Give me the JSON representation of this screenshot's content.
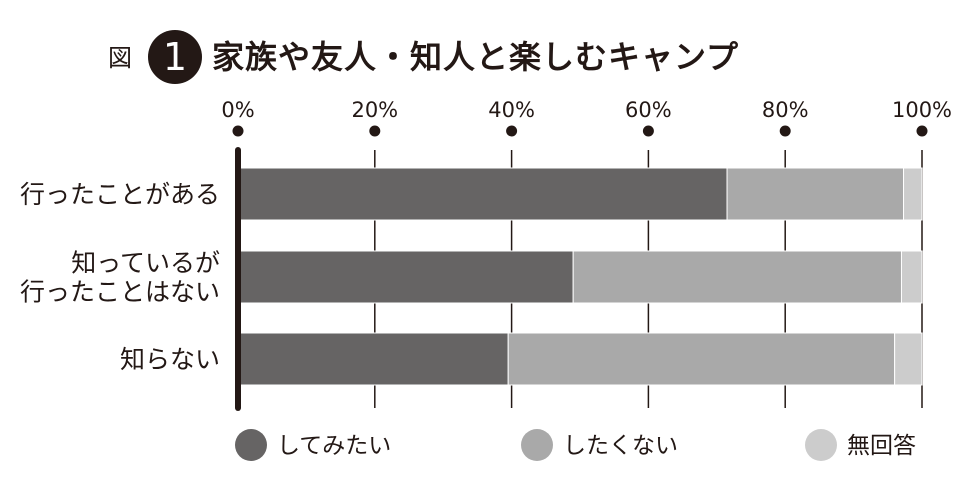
{
  "figure": {
    "prefix": "図",
    "number": "1",
    "title": "家族や友人・知人と楽しむキャンプ"
  },
  "chart_data": {
    "type": "bar",
    "orientation": "horizontal",
    "stacked": true,
    "title": "家族や友人・知人と楽しむキャンプ",
    "xlim": [
      0,
      100
    ],
    "x_ticks": [
      "0%",
      "20%",
      "40%",
      "60%",
      "80%",
      "100%"
    ],
    "categories": [
      [
        "行ったことがある"
      ],
      [
        "知っているが",
        "行ったことはない"
      ],
      [
        "知らない"
      ]
    ],
    "series": [
      {
        "name": "してみたい",
        "color": "#666464",
        "values": [
          71.5,
          49.0,
          39.5
        ]
      },
      {
        "name": "したくない",
        "color": "#a9a9a9",
        "values": [
          25.8,
          48.0,
          56.5
        ]
      },
      {
        "name": "無回答",
        "color": "#cccccc",
        "values": [
          2.7,
          3.0,
          4.0
        ]
      }
    ],
    "grid": true,
    "legend_position": "bottom"
  }
}
